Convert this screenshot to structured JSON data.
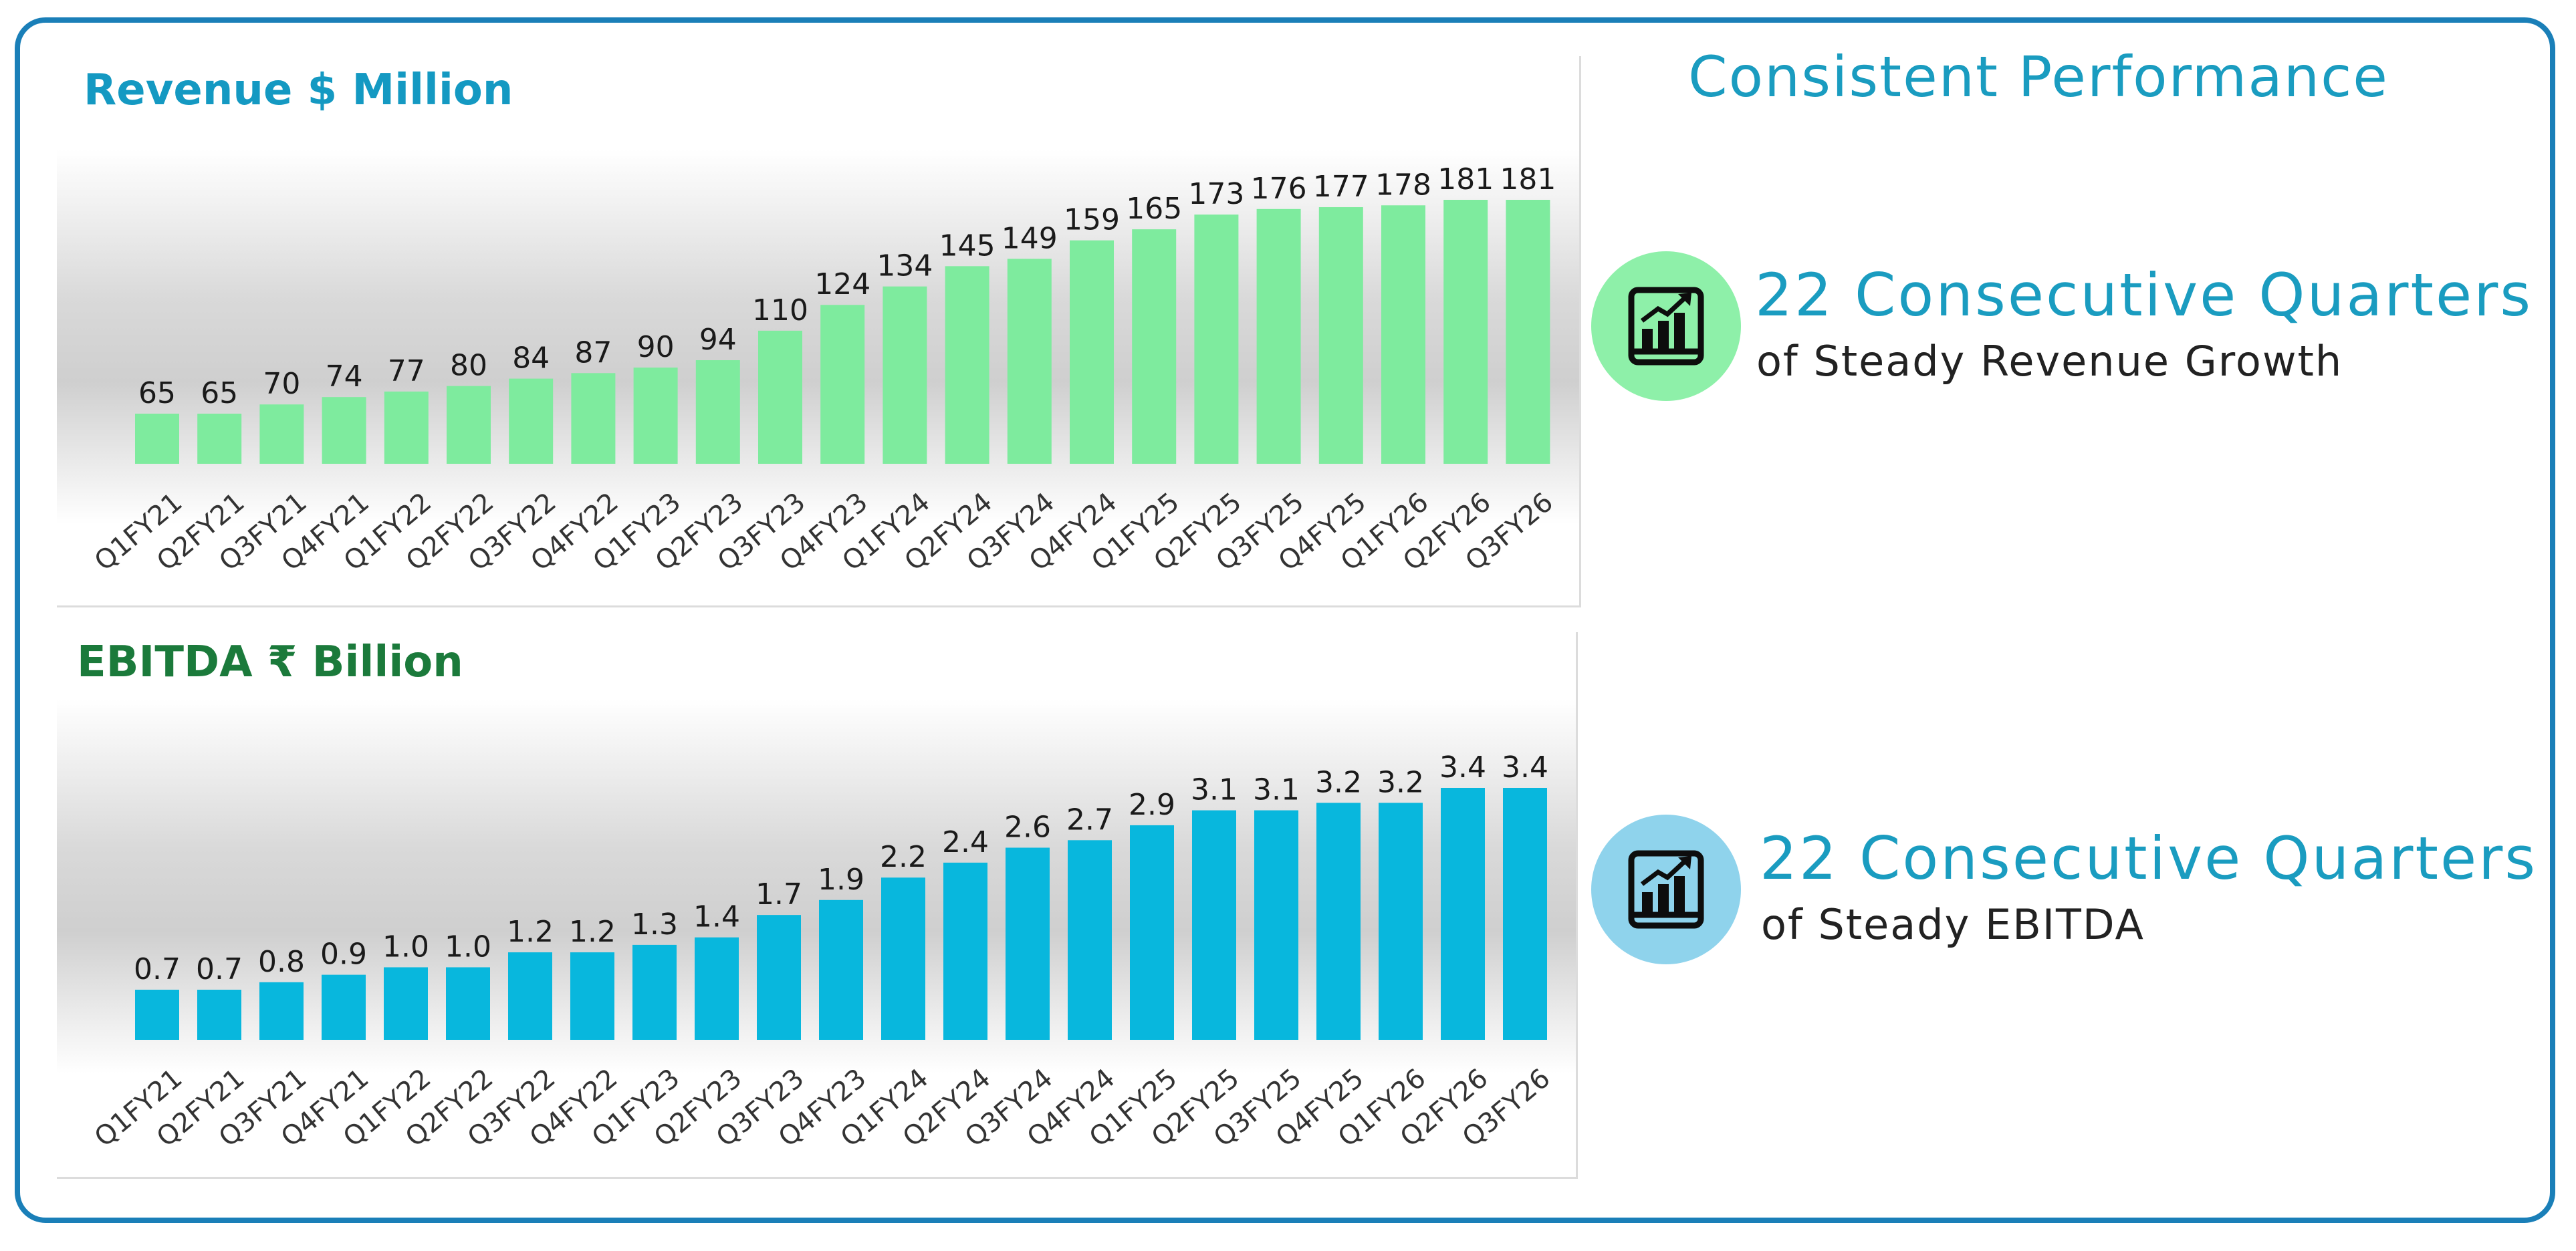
{
  "page": {
    "title": "Consistent Performance"
  },
  "colors": {
    "frame": "#1a7fb8",
    "revenue_bar": "#7eeb9e",
    "ebitda_bar": "#08b7dd",
    "revenue_title": "#1499c2",
    "ebitda_title": "#1b7a3b",
    "accent_text": "#1a9cc0",
    "circle_green": "#8ef0a9",
    "circle_blue": "#8fd3ec"
  },
  "stats": [
    {
      "headline": "22 Consecutive Quarters",
      "sub": "of Steady Revenue Growth",
      "icon": "bar-chart-growth-icon"
    },
    {
      "headline": "22 Consecutive Quarters",
      "sub": "of Steady EBITDA",
      "icon": "bar-chart-growth-icon"
    }
  ],
  "chart_data": [
    {
      "type": "bar",
      "title": "Revenue $ Million",
      "categories": [
        "Q1FY21",
        "Q2FY21",
        "Q3FY21",
        "Q4FY21",
        "Q1FY22",
        "Q2FY22",
        "Q3FY22",
        "Q4FY22",
        "Q1FY23",
        "Q2FY23",
        "Q3FY23",
        "Q4FY23",
        "Q1FY24",
        "Q2FY24",
        "Q3FY24",
        "Q4FY24",
        "Q1FY25",
        "Q2FY25",
        "Q3FY25",
        "Q4FY25",
        "Q1FY26",
        "Q2FY26",
        "Q3FY26"
      ],
      "values": [
        65,
        65,
        70,
        74,
        77,
        80,
        84,
        87,
        90,
        94,
        110,
        124,
        134,
        145,
        149,
        159,
        165,
        173,
        176,
        177,
        178,
        181,
        181
      ],
      "labels": [
        "65",
        "65",
        "70",
        "74",
        "77",
        "80",
        "84",
        "87",
        "90",
        "94",
        "110",
        "124",
        "134",
        "145",
        "149",
        "159",
        "165",
        "173",
        "176",
        "177",
        "178",
        "181",
        "181"
      ],
      "xlabel": "",
      "ylabel": "",
      "ylim": [
        0,
        181
      ],
      "grid": false,
      "legend": "none"
    },
    {
      "type": "bar",
      "title": "EBITDA ₹ Billion",
      "categories": [
        "Q1FY21",
        "Q2FY21",
        "Q3FY21",
        "Q4FY21",
        "Q1FY22",
        "Q2FY22",
        "Q3FY22",
        "Q4FY22",
        "Q1FY23",
        "Q2FY23",
        "Q3FY23",
        "Q4FY23",
        "Q1FY24",
        "Q2FY24",
        "Q3FY24",
        "Q4FY24",
        "Q1FY25",
        "Q2FY25",
        "Q3FY25",
        "Q4FY25",
        "Q1FY26",
        "Q2FY26",
        "Q3FY26"
      ],
      "values": [
        0.7,
        0.7,
        0.8,
        0.9,
        1.0,
        1.0,
        1.2,
        1.2,
        1.3,
        1.4,
        1.7,
        1.9,
        2.2,
        2.4,
        2.6,
        2.7,
        2.9,
        3.1,
        3.1,
        3.2,
        3.2,
        3.4,
        3.4
      ],
      "labels": [
        "0.7",
        "0.7",
        "0.8",
        "0.9",
        "1.0",
        "1.0",
        "1.2",
        "1.2",
        "1.3",
        "1.4",
        "1.7",
        "1.9",
        "2.2",
        "2.4",
        "2.6",
        "2.7",
        "2.9",
        "3.1",
        "3.1",
        "3.2",
        "3.2",
        "3.4",
        "3.4"
      ],
      "xlabel": "",
      "ylabel": "",
      "ylim": [
        0,
        3.4
      ],
      "grid": false,
      "legend": "none"
    }
  ]
}
